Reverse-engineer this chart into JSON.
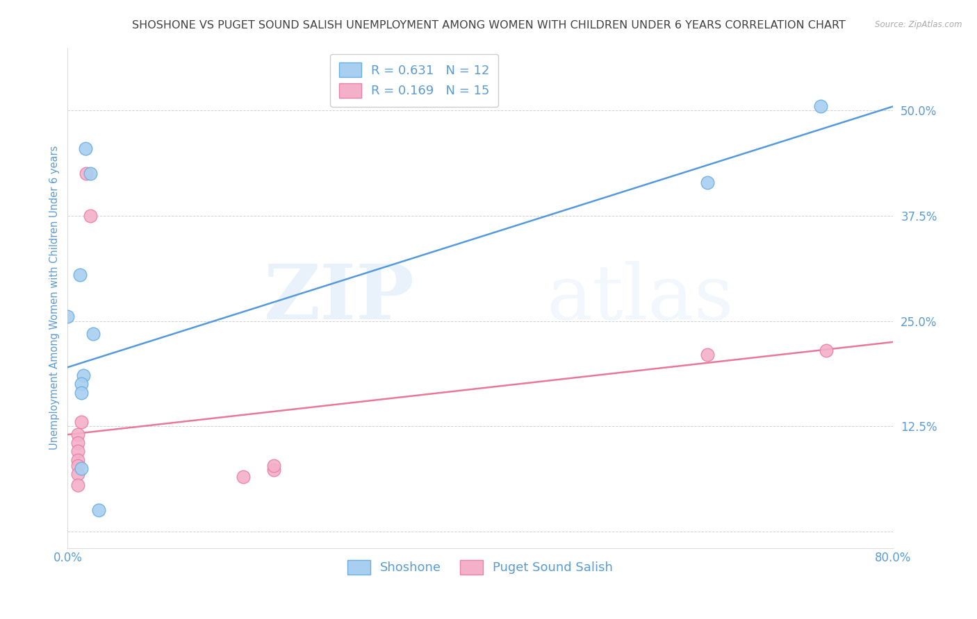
{
  "title": "SHOSHONE VS PUGET SOUND SALISH UNEMPLOYMENT AMONG WOMEN WITH CHILDREN UNDER 6 YEARS CORRELATION CHART",
  "source": "Source: ZipAtlas.com",
  "ylabel": "Unemployment Among Women with Children Under 6 years",
  "xlim": [
    0.0,
    0.8
  ],
  "ylim": [
    -0.02,
    0.575
  ],
  "yticks": [
    0.0,
    0.125,
    0.25,
    0.375,
    0.5
  ],
  "ytick_labels": [
    "",
    "12.5%",
    "25.0%",
    "37.5%",
    "50.0%"
  ],
  "xticks": [
    0.0,
    0.1,
    0.2,
    0.3,
    0.4,
    0.5,
    0.6,
    0.7,
    0.8
  ],
  "xtick_labels": [
    "0.0%",
    "",
    "",
    "",
    "",
    "",
    "",
    "",
    "80.0%"
  ],
  "shoshone_x": [
    0.017,
    0.022,
    0.012,
    0.0,
    0.025,
    0.015,
    0.013,
    0.013,
    0.013,
    0.62,
    0.73,
    0.03
  ],
  "shoshone_y": [
    0.455,
    0.425,
    0.305,
    0.255,
    0.235,
    0.185,
    0.175,
    0.165,
    0.075,
    0.415,
    0.505,
    0.025
  ],
  "puget_x": [
    0.018,
    0.022,
    0.013,
    0.01,
    0.01,
    0.01,
    0.01,
    0.01,
    0.01,
    0.01,
    0.17,
    0.2,
    0.2,
    0.62,
    0.735
  ],
  "puget_y": [
    0.425,
    0.375,
    0.13,
    0.115,
    0.105,
    0.095,
    0.085,
    0.078,
    0.068,
    0.055,
    0.065,
    0.073,
    0.078,
    0.21,
    0.215
  ],
  "shoshone_color": "#A8CFF0",
  "shoshone_edge_color": "#6AAEE0",
  "puget_color": "#F4B0C8",
  "puget_edge_color": "#E880A8",
  "blue_line_x": [
    0.0,
    0.8
  ],
  "blue_line_y": [
    0.195,
    0.505
  ],
  "pink_line_x": [
    0.0,
    0.8
  ],
  "pink_line_y": [
    0.115,
    0.225
  ],
  "blue_line_color": "#5599DD",
  "pink_line_color": "#E87898",
  "R_shoshone": 0.631,
  "N_shoshone": 12,
  "R_puget": 0.169,
  "N_puget": 15,
  "legend_label_shoshone": "Shoshone",
  "legend_label_puget": "Puget Sound Salish",
  "marker_size": 180,
  "watermark_zip": "ZIP",
  "watermark_atlas": "atlas",
  "background_color": "#FFFFFF",
  "title_color": "#404040",
  "axis_label_color": "#5B9BD5",
  "tick_color": "#5B9BD5",
  "grid_color": "#CCCCCC",
  "source_color": "#AAAAAA",
  "title_fontsize": 11.5,
  "ylabel_fontsize": 10.5
}
